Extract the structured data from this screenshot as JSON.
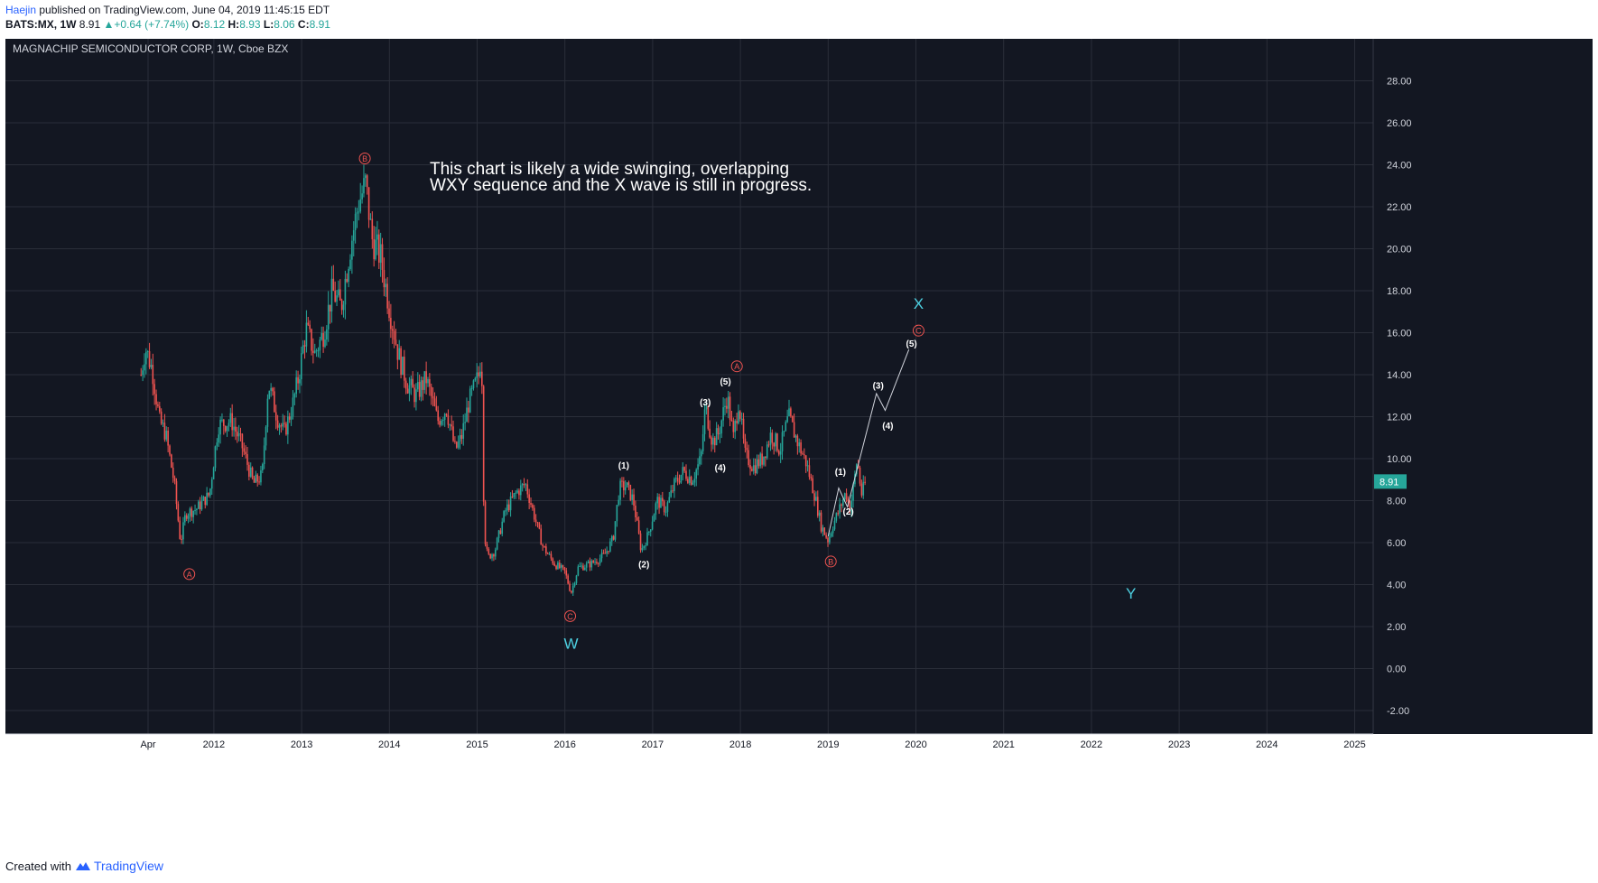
{
  "header": {
    "author": "Haejin",
    "published_text": " published on TradingView.com, June 04, 2019 11:45:15 EDT"
  },
  "quote": {
    "symbol": "BATS:MX, 1W",
    "last": "8.91",
    "change": "+0.64 (+7.74%)",
    "o_label": "O:",
    "o": "8.12",
    "h_label": "H:",
    "h": "8.93",
    "l_label": "L:",
    "l": "8.06",
    "c_label": "C:",
    "c": "8.91"
  },
  "footer": {
    "created_with": "Created with",
    "brand": "TradingView"
  },
  "chart_data": {
    "type": "candlestick",
    "title": "MAGNACHIP SEMICONDUCTOR CORP, 1W, Cboe BZX",
    "annotation": "This chart is likely a wide swinging, overlapping\nWXY sequence and the X wave is still in progress.",
    "ylim": [
      -3,
      30
    ],
    "y_ticks": [
      -2,
      0,
      2,
      4,
      6,
      8,
      10,
      12,
      14,
      16,
      18,
      20,
      22,
      24,
      26,
      28
    ],
    "y_tick_labels": [
      "-2.00",
      "0.00",
      "2.00",
      "4.00",
      "6.00",
      "8.00",
      "10.00",
      "12.00",
      "14.00",
      "16.00",
      "18.00",
      "20.00",
      "22.00",
      "24.00",
      "26.00",
      "28.00"
    ],
    "x_ticks": [
      {
        "label": "Apr",
        "t": 2011.25
      },
      {
        "label": "2012",
        "t": 2012.0
      },
      {
        "label": "2013",
        "t": 2013.0
      },
      {
        "label": "2014",
        "t": 2014.0
      },
      {
        "label": "2015",
        "t": 2015.0
      },
      {
        "label": "2016",
        "t": 2016.0
      },
      {
        "label": "2017",
        "t": 2017.0
      },
      {
        "label": "2018",
        "t": 2018.0
      },
      {
        "label": "2019",
        "t": 2019.0
      },
      {
        "label": "2020",
        "t": 2020.0
      },
      {
        "label": "2021",
        "t": 2021.0
      },
      {
        "label": "2022",
        "t": 2022.0
      },
      {
        "label": "2023",
        "t": 2023.0
      },
      {
        "label": "2024",
        "t": 2024.0
      },
      {
        "label": "2025",
        "t": 2025.0
      }
    ],
    "last_price": 8.91,
    "last_price_label": "8.91",
    "colors": {
      "background": "#131722",
      "up": "#26a69a",
      "down": "#ef5350",
      "grid": "#2a2e39",
      "wave": "#4dd0e1",
      "abc": "#ef5350",
      "price_tag": "#26a69a"
    },
    "price_path": [
      [
        2011.17,
        14.0
      ],
      [
        2011.22,
        15.3
      ],
      [
        2011.3,
        14.2
      ],
      [
        2011.38,
        11.8
      ],
      [
        2011.45,
        11.2
      ],
      [
        2011.55,
        8.8
      ],
      [
        2011.62,
        6.0
      ],
      [
        2011.68,
        7.4
      ],
      [
        2011.8,
        7.6
      ],
      [
        2011.95,
        8.3
      ],
      [
        2012.05,
        11.6
      ],
      [
        2012.2,
        11.8
      ],
      [
        2012.32,
        10.6
      ],
      [
        2012.45,
        8.8
      ],
      [
        2012.55,
        9.2
      ],
      [
        2012.62,
        13.6
      ],
      [
        2012.72,
        12.0
      ],
      [
        2012.8,
        11.2
      ],
      [
        2012.9,
        12.6
      ],
      [
        2012.97,
        14.0
      ],
      [
        2013.05,
        16.2
      ],
      [
        2013.15,
        15.0
      ],
      [
        2013.25,
        16.0
      ],
      [
        2013.35,
        18.0
      ],
      [
        2013.45,
        17.2
      ],
      [
        2013.55,
        20.0
      ],
      [
        2013.65,
        22.2
      ],
      [
        2013.73,
        23.1
      ],
      [
        2013.8,
        20.5
      ],
      [
        2013.9,
        19.6
      ],
      [
        2014.0,
        17.2
      ],
      [
        2014.1,
        15.0
      ],
      [
        2014.2,
        13.6
      ],
      [
        2014.3,
        13.0
      ],
      [
        2014.42,
        13.8
      ],
      [
        2014.55,
        11.8
      ],
      [
        2014.65,
        12.4
      ],
      [
        2014.75,
        10.4
      ],
      [
        2014.82,
        11.0
      ],
      [
        2014.9,
        12.6
      ],
      [
        2015.02,
        14.0
      ],
      [
        2015.05,
        15.2
      ],
      [
        2015.08,
        6.5
      ],
      [
        2015.12,
        5.3
      ],
      [
        2015.2,
        5.6
      ],
      [
        2015.32,
        7.5
      ],
      [
        2015.45,
        8.4
      ],
      [
        2015.55,
        8.8
      ],
      [
        2015.65,
        7.3
      ],
      [
        2015.75,
        5.8
      ],
      [
        2015.88,
        5.0
      ],
      [
        2016.0,
        4.6
      ],
      [
        2016.07,
        3.6
      ],
      [
        2016.15,
        4.8
      ],
      [
        2016.3,
        5.0
      ],
      [
        2016.45,
        5.4
      ],
      [
        2016.55,
        6.2
      ],
      [
        2016.62,
        8.6
      ],
      [
        2016.7,
        8.7
      ],
      [
        2016.78,
        8.0
      ],
      [
        2016.87,
        5.6
      ],
      [
        2016.95,
        6.4
      ],
      [
        2017.05,
        8.0
      ],
      [
        2017.15,
        7.6
      ],
      [
        2017.25,
        8.8
      ],
      [
        2017.35,
        9.4
      ],
      [
        2017.45,
        9.0
      ],
      [
        2017.55,
        10.0
      ],
      [
        2017.6,
        12.5
      ],
      [
        2017.68,
        10.8
      ],
      [
        2017.75,
        11.2
      ],
      [
        2017.85,
        13.0
      ],
      [
        2017.92,
        11.0
      ],
      [
        2017.98,
        12.8
      ],
      [
        2018.05,
        10.2
      ],
      [
        2018.15,
        9.6
      ],
      [
        2018.25,
        10.0
      ],
      [
        2018.35,
        11.2
      ],
      [
        2018.45,
        10.4
      ],
      [
        2018.55,
        12.0
      ],
      [
        2018.65,
        10.8
      ],
      [
        2018.75,
        9.8
      ],
      [
        2018.85,
        8.2
      ],
      [
        2018.92,
        6.8
      ],
      [
        2019.0,
        6.1
      ],
      [
        2019.05,
        6.8
      ],
      [
        2019.12,
        7.5
      ],
      [
        2019.2,
        8.4
      ],
      [
        2019.25,
        7.6
      ],
      [
        2019.3,
        9.0
      ],
      [
        2019.33,
        10.0
      ],
      [
        2019.38,
        8.3
      ],
      [
        2019.43,
        8.91
      ]
    ],
    "projection": [
      [
        2019.0,
        6.3
      ],
      [
        2019.12,
        8.6
      ],
      [
        2019.22,
        7.7
      ],
      [
        2019.55,
        13.1
      ],
      [
        2019.65,
        12.3
      ],
      [
        2019.92,
        15.2
      ]
    ],
    "wave_labels": [
      {
        "text": "W",
        "t": 2016.07,
        "v": 1.2,
        "kind": "wave"
      },
      {
        "text": "X",
        "t": 2020.03,
        "v": 17.4,
        "kind": "wave"
      },
      {
        "text": "Y",
        "t": 2022.45,
        "v": 3.6,
        "kind": "wave"
      },
      {
        "text": "A",
        "t": 2011.72,
        "v": 4.5,
        "kind": "abc"
      },
      {
        "text": "B",
        "t": 2013.72,
        "v": 24.3,
        "kind": "abc"
      },
      {
        "text": "C",
        "t": 2016.06,
        "v": 2.5,
        "kind": "abc"
      },
      {
        "text": "A",
        "t": 2017.96,
        "v": 14.4,
        "kind": "abc"
      },
      {
        "text": "B",
        "t": 2019.03,
        "v": 5.1,
        "kind": "abc"
      },
      {
        "text": "C",
        "t": 2020.03,
        "v": 16.1,
        "kind": "abc"
      },
      {
        "text": "(1)",
        "t": 2016.67,
        "v": 9.7,
        "kind": "num"
      },
      {
        "text": "(2)",
        "t": 2016.9,
        "v": 5.0,
        "kind": "num"
      },
      {
        "text": "(3)",
        "t": 2017.6,
        "v": 12.7,
        "kind": "num"
      },
      {
        "text": "(4)",
        "t": 2017.77,
        "v": 9.6,
        "kind": "num"
      },
      {
        "text": "(5)",
        "t": 2017.83,
        "v": 13.7,
        "kind": "num"
      },
      {
        "text": "(1)",
        "t": 2019.14,
        "v": 9.4,
        "kind": "num"
      },
      {
        "text": "(2)",
        "t": 2019.23,
        "v": 7.5,
        "kind": "num"
      },
      {
        "text": "(3)",
        "t": 2019.57,
        "v": 13.5,
        "kind": "num"
      },
      {
        "text": "(4)",
        "t": 2019.68,
        "v": 11.6,
        "kind": "num"
      },
      {
        "text": "(5)",
        "t": 2019.95,
        "v": 15.5,
        "kind": "num"
      }
    ]
  }
}
